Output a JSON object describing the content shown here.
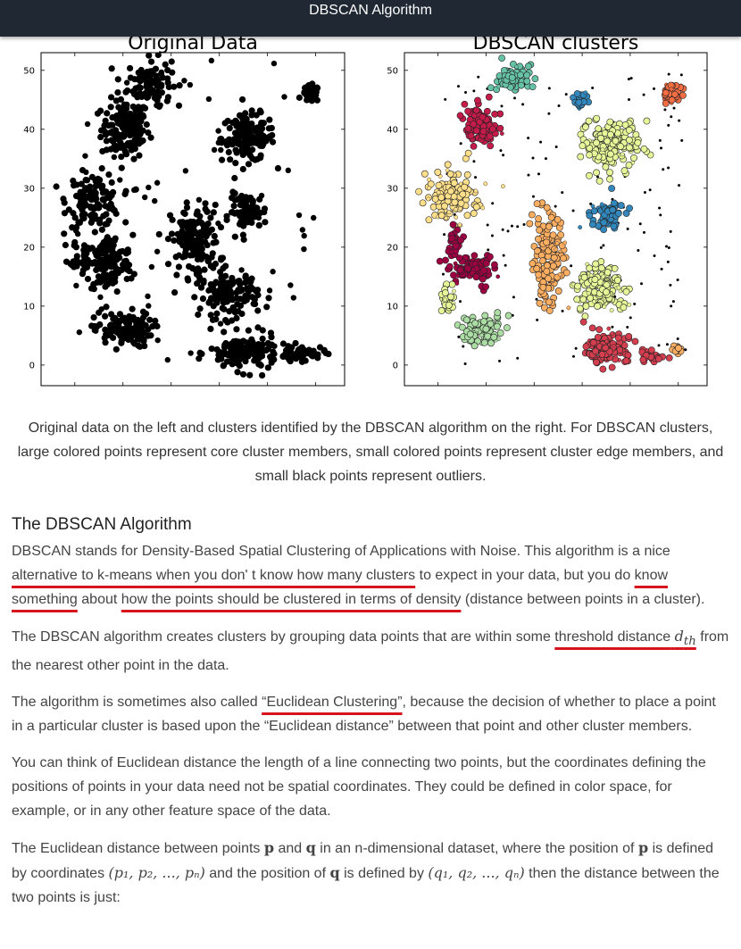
{
  "header": {
    "title": "DBSCAN Algorithm"
  },
  "figure": {
    "left_panel_title": "Original Data",
    "right_panel_title": "DBSCAN clusters",
    "caption": "Original data on the left and clusters identified by the DBSCAN algorithm on the right. For DBSCAN clusters, large colored points represent core cluster members, small colored points represent cluster edge members, and small black points represent outliers."
  },
  "chart_data": [
    {
      "type": "scatter",
      "title": "Original Data",
      "xlim": [
        -7,
        56
      ],
      "ylim": [
        -3.5,
        53
      ],
      "x_ticks": [
        0,
        10,
        20,
        30,
        40,
        50
      ],
      "y_ticks": [
        0,
        10,
        20,
        30,
        40,
        50
      ],
      "point_color": "#000000",
      "groups": [
        {
          "cx": 10.5,
          "cy": 40,
          "rx": 5,
          "ry": 5,
          "n": 150
        },
        {
          "cx": 15.5,
          "cy": 48,
          "rx": 4.5,
          "ry": 4,
          "n": 100
        },
        {
          "cx": 36,
          "cy": 38.5,
          "rx": 5.5,
          "ry": 4,
          "n": 150
        },
        {
          "cx": 49,
          "cy": 46,
          "rx": 1.8,
          "ry": 1.4,
          "n": 40
        },
        {
          "cx": 4,
          "cy": 28,
          "rx": 5.5,
          "ry": 4.5,
          "n": 130
        },
        {
          "cx": 7,
          "cy": 17,
          "rx": 5,
          "ry": 5,
          "n": 130
        },
        {
          "cx": 2,
          "cy": 19,
          "rx": 3,
          "ry": 2.5,
          "n": 30
        },
        {
          "cx": 10,
          "cy": 6,
          "rx": 6,
          "ry": 3,
          "n": 120
        },
        {
          "cx": 25,
          "cy": 21,
          "rx": 5,
          "ry": 6,
          "n": 150
        },
        {
          "cx": 36,
          "cy": 26,
          "rx": 4,
          "ry": 3,
          "n": 70
        },
        {
          "cx": 32,
          "cy": 12,
          "rx": 6,
          "ry": 4,
          "n": 130
        },
        {
          "cx": 35,
          "cy": 2,
          "rx": 7,
          "ry": 3,
          "n": 140
        },
        {
          "cx": 47,
          "cy": 2,
          "rx": 5,
          "ry": 1.3,
          "n": 50
        }
      ],
      "noise_points": 70
    },
    {
      "type": "scatter",
      "title": "DBSCAN clusters",
      "xlim": [
        -7,
        56
      ],
      "ylim": [
        -3.5,
        53
      ],
      "x_ticks": [
        0,
        10,
        20,
        30,
        40,
        50
      ],
      "y_ticks": [
        0,
        10,
        20,
        30,
        40,
        50
      ],
      "clusters": [
        {
          "color": "#66c2a5",
          "cx": 15.5,
          "cy": 48.5,
          "rx": 3,
          "ry": 2.5,
          "n": 80
        },
        {
          "color": "#3288bd",
          "cx": 29.5,
          "cy": 45,
          "rx": 1.6,
          "ry": 1.8,
          "n": 30
        },
        {
          "color": "#f46d43",
          "cx": 49,
          "cy": 46,
          "rx": 2,
          "ry": 1.6,
          "n": 50
        },
        {
          "color": "#c51b4a",
          "cx": 9,
          "cy": 40.5,
          "rx": 3.3,
          "ry": 3.5,
          "n": 110
        },
        {
          "color": "#e6f598",
          "cx": 36,
          "cy": 37.5,
          "rx": 6,
          "ry": 4.5,
          "n": 170
        },
        {
          "color": "#fee08b",
          "cx": 3,
          "cy": 28.5,
          "rx": 5.5,
          "ry": 4.5,
          "n": 140
        },
        {
          "color": "#3288bd",
          "cx": 35.5,
          "cy": 25.5,
          "rx": 3.5,
          "ry": 2.5,
          "n": 70
        },
        {
          "color": "#fdae61",
          "cx": 23,
          "cy": 18,
          "rx": 3.5,
          "ry": 8,
          "n": 150
        },
        {
          "color": "#9e0142",
          "cx": 7,
          "cy": 16.5,
          "rx": 4.5,
          "ry": 2.5,
          "n": 90
        },
        {
          "color": "#9e0142",
          "cx": 3.5,
          "cy": 21,
          "rx": 1.5,
          "ry": 2.2,
          "n": 30
        },
        {
          "color": "#e6f598",
          "cx": 34,
          "cy": 13,
          "rx": 5,
          "ry": 4,
          "n": 140
        },
        {
          "color": "#e6f598",
          "cx": 2,
          "cy": 11,
          "rx": 1.5,
          "ry": 2,
          "n": 25
        },
        {
          "color": "#abdda4",
          "cx": 9,
          "cy": 6,
          "rx": 5,
          "ry": 2.5,
          "n": 100
        },
        {
          "color": "#d53e4f",
          "cx": 35,
          "cy": 3,
          "rx": 4,
          "ry": 2.7,
          "n": 120
        },
        {
          "color": "#d53e4f",
          "cx": 44,
          "cy": 1.5,
          "rx": 4,
          "ry": 0.8,
          "n": 35
        },
        {
          "color": "#fdae61",
          "cx": 50,
          "cy": 2.5,
          "rx": 1,
          "ry": 1,
          "n": 12
        }
      ],
      "noise_color": "#000000",
      "noise_points": 140
    }
  ],
  "article": {
    "heading": "The DBSCAN Algorithm",
    "p1_a": "DBSCAN stands for Density-Based Spatial Clustering of Applications with Noise. This algorithm is a nice ",
    "p1_u1": "alternative to k-means when you don' t know how many clusters",
    "p1_b": " to expect in your data, but you do ",
    "p1_u2": "know something",
    "p1_c": " about ",
    "p1_u3": "how the points should be clustered in terms of density",
    "p1_d": " (distance between points in a cluster).",
    "p2_a": "The DBSCAN algorithm creates clusters by grouping data points that are within some ",
    "p2_u": "threshold distance",
    "p2_math": "d",
    "p2_sub": "th",
    "p2_b": " from the nearest other point in the data.",
    "p3_a": "The algorithm is sometimes also called ",
    "p3_link": "“Euclidean Clustering”",
    "p3_b": ", because the decision of whether to place a point in a particular cluster is based upon the “Euclidean distance” between that point and other cluster members.",
    "p4": "You can think of Euclidean distance the length of a line connecting two points, but the coordinates defining the positions of points in your data need not be spatial coordinates. They could be defined in color space, for example, or in any other feature space of the data.",
    "p5_a": "The Euclidean distance between points ",
    "p5_p": "p",
    "p5_b": " and ",
    "p5_q": "q",
    "p5_c": " in an n-dimensional dataset, where the position of ",
    "p5_p2": "p",
    "p5_d": " is defined by coordinates ",
    "p5_pc": "(p₁, p₂, ..., pₙ)",
    "p5_e": " and the position of ",
    "p5_q2": "q",
    "p5_f": " is defined by ",
    "p5_qc": "(q₁, q₂, ..., qₙ)",
    "p5_g": " then the distance between the two points is just:"
  }
}
